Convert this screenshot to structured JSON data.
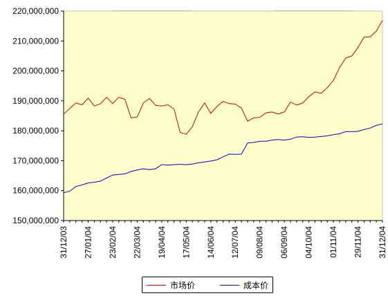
{
  "colors": {
    "plot_bg": "#ffffcc",
    "axis": "#000000",
    "series_market": "#cc0000",
    "series_cost": "#0000cc",
    "legend_bg": "#ffffff"
  },
  "legend": [
    "市场价",
    "成本价"
  ],
  "chart_data": {
    "type": "line",
    "title": "",
    "xlabel": "",
    "ylabel": "",
    "ylim": [
      150000000,
      220000000
    ],
    "y_ticks": [
      150000000,
      160000000,
      170000000,
      180000000,
      190000000,
      200000000,
      210000000,
      220000000
    ],
    "y_tick_labels": [
      "150,000,000",
      "160,000,000",
      "170,000,000",
      "180,000,000",
      "190,000,000",
      "200,000,000",
      "210,000,000",
      "220,000,000"
    ],
    "x_tick_labels": [
      {
        "index": 0,
        "label": "31/12/03"
      },
      {
        "index": 4,
        "label": "27/01/04"
      },
      {
        "index": 8,
        "label": "23/02/04"
      },
      {
        "index": 12,
        "label": "22/03/04"
      },
      {
        "index": 16,
        "label": "19/04/04"
      },
      {
        "index": 20,
        "label": "17/05/04"
      },
      {
        "index": 24,
        "label": "14/06/04"
      },
      {
        "index": 28,
        "label": "12/07/04"
      },
      {
        "index": 32,
        "label": "09/08/04"
      },
      {
        "index": 36,
        "label": "06/09/04"
      },
      {
        "index": 40,
        "label": "04/10/04"
      },
      {
        "index": 44,
        "label": "01/11/04"
      },
      {
        "index": 48,
        "label": "29/11/04"
      },
      {
        "index": 52,
        "label": "31/12/04"
      }
    ],
    "legend_position": "bottom",
    "grid": false,
    "series": [
      {
        "name": "市场价",
        "values": [
          185.5,
          187.5,
          189.3,
          188.7,
          190.9,
          188.3,
          189.0,
          191.2,
          189.1,
          191.2,
          190.5,
          184.3,
          184.6,
          189.3,
          190.8,
          188.5,
          188.3,
          188.7,
          187.3,
          179.5,
          178.8,
          181.4,
          186.3,
          189.3,
          185.8,
          188.1,
          189.8,
          189.1,
          188.9,
          187.6,
          183.2,
          184.3,
          184.5,
          186.0,
          186.3,
          185.6,
          186.3,
          189.6,
          188.6,
          189.3,
          191.4,
          193.0,
          192.5,
          194.4,
          196.8,
          201.1,
          204.3,
          205.0,
          207.8,
          211.3,
          211.4,
          213.3,
          216.9
        ]
      },
      {
        "name": "成本价",
        "values": [
          159.3,
          159.8,
          161.4,
          161.9,
          162.6,
          162.8,
          163.2,
          164.2,
          165.2,
          165.4,
          165.6,
          166.4,
          166.9,
          167.3,
          167.0,
          167.3,
          168.7,
          168.5,
          168.7,
          168.8,
          168.7,
          168.9,
          169.3,
          169.6,
          169.9,
          170.3,
          171.3,
          172.2,
          172.1,
          172.2,
          175.9,
          176.1,
          176.5,
          176.5,
          176.9,
          177.1,
          176.9,
          177.2,
          177.9,
          178.0,
          177.8,
          177.9,
          178.1,
          178.3,
          178.7,
          179.0,
          179.7,
          179.7,
          179.8,
          180.4,
          180.9,
          181.8,
          182.3
        ]
      }
    ]
  }
}
